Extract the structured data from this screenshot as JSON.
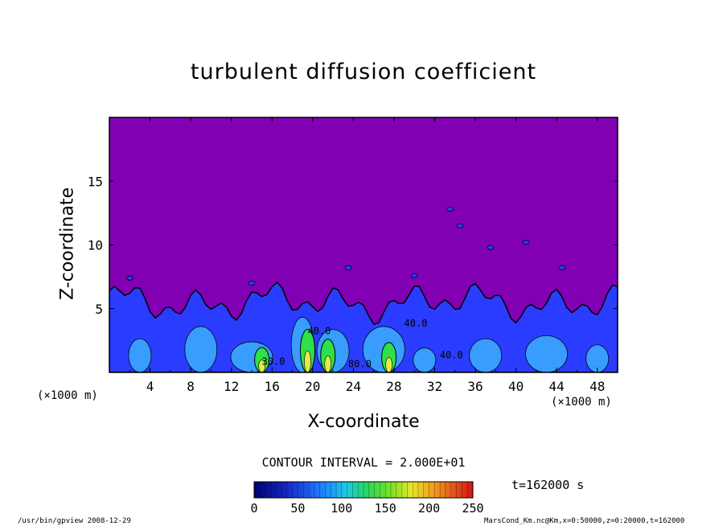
{
  "chart_data": {
    "type": "heatmap",
    "title": "turbulent diffusion coefficient",
    "xlabel": "X-coordinate",
    "ylabel": "Z-coordinate",
    "x_unit_left": "(×1000 m)",
    "x_unit_right": "(×1000 m)",
    "xlim": [
      0,
      50
    ],
    "ylim": [
      0,
      20
    ],
    "x_ticks": [
      "4",
      "8",
      "12",
      "16",
      "20",
      "24",
      "28",
      "32",
      "36",
      "40",
      "44",
      "48"
    ],
    "y_ticks": [
      "5",
      "10",
      "15"
    ],
    "contour_interval_text": "CONTOUR INTERVAL = 2.000E+01",
    "contour_labels": [
      "30.0",
      "40.0",
      "40.0",
      "80.0",
      "40.0"
    ],
    "colorbar": {
      "range": [
        0,
        250
      ],
      "ticks": [
        "0",
        "50",
        "100",
        "150",
        "200",
        "250"
      ]
    },
    "background_value_color": "#8200b4",
    "boundary_layer_top_km": 5.5,
    "colors": {
      "background": "#8200b4",
      "low": "#2a3cff",
      "mid": "#3aa8ff",
      "high": "#2ee04a",
      "peak": "#e8e84a"
    }
  },
  "time_label": "t=162000 s",
  "footer_left": "/usr/bin/gpview   2008-12-29",
  "footer_right": "MarsCond_Km.nc@Km,x=0:50000,z=0:20000,t=162000"
}
